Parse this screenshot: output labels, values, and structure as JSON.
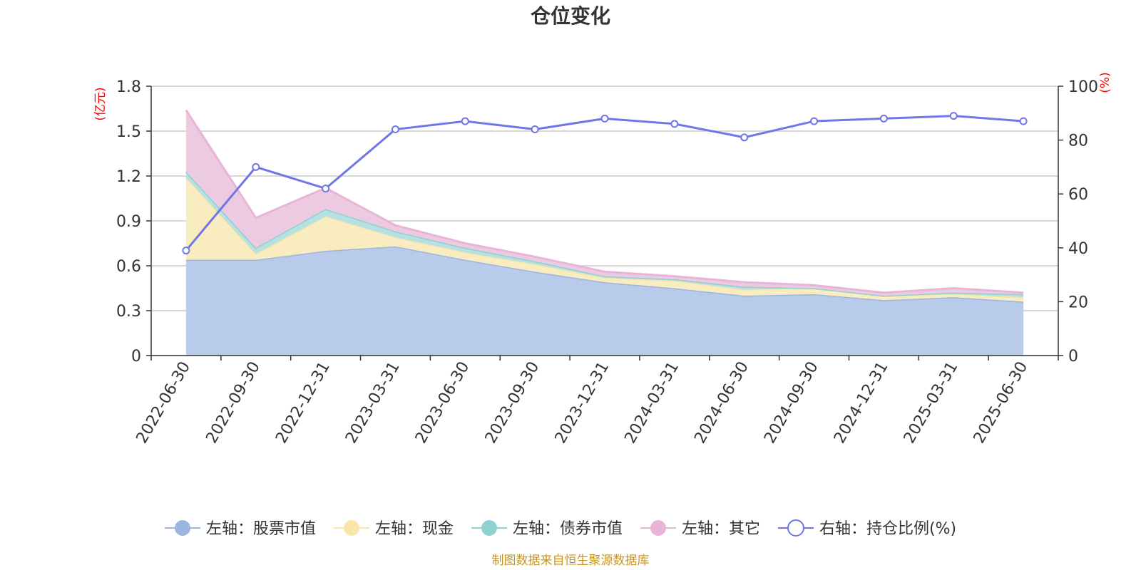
{
  "chart_data": {
    "type": "area",
    "title": "仓位变化",
    "x": [
      "2022-06-30",
      "2022-09-30",
      "2022-12-31",
      "2023-03-31",
      "2023-06-30",
      "2023-09-30",
      "2023-12-31",
      "2024-03-31",
      "2024-06-30",
      "2024-09-30",
      "2024-12-31",
      "2025-03-31",
      "2025-06-30"
    ],
    "left_axis": {
      "unit": "(亿元)",
      "ylim": [
        0,
        1.8
      ],
      "ticks": [
        "0",
        "0.3",
        "0.6",
        "0.9",
        "1.2",
        "1.5",
        "1.8"
      ]
    },
    "right_axis": {
      "unit": "(%)",
      "ylim": [
        0,
        100
      ],
      "ticks": [
        "0",
        "20",
        "40",
        "60",
        "80",
        "100"
      ]
    },
    "stacked": true,
    "grid": true,
    "legend_position": "bottom",
    "series": [
      {
        "name": "左轴：股票市值",
        "axis": "left",
        "type": "area",
        "color": "#9ab6e0",
        "fill": "#b8cbea",
        "values": [
          0.64,
          0.64,
          0.7,
          0.73,
          0.64,
          0.56,
          0.49,
          0.45,
          0.4,
          0.41,
          0.37,
          0.39,
          0.36
        ]
      },
      {
        "name": "左轴：现金",
        "axis": "left",
        "type": "area",
        "color": "#f8e6a8",
        "fill": "#f8ecc0",
        "values": [
          0.55,
          0.04,
          0.23,
          0.06,
          0.05,
          0.05,
          0.03,
          0.05,
          0.04,
          0.04,
          0.03,
          0.02,
          0.03
        ]
      },
      {
        "name": "左轴：债券市值",
        "axis": "left",
        "type": "area",
        "color": "#8fd0d0",
        "fill": "#b6e0e2",
        "values": [
          0.04,
          0.04,
          0.05,
          0.04,
          0.03,
          0.02,
          0.01,
          0.01,
          0.02,
          0.0,
          0.0,
          0.01,
          0.02
        ]
      },
      {
        "name": "左轴：其它",
        "axis": "left",
        "type": "area",
        "color": "#e8b4d8",
        "fill": "#eccbe2",
        "values": [
          0.41,
          0.2,
          0.14,
          0.04,
          0.03,
          0.03,
          0.03,
          0.02,
          0.03,
          0.02,
          0.02,
          0.03,
          0.01
        ]
      },
      {
        "name": "右轴：持仓比例(%)",
        "axis": "right",
        "type": "line",
        "color": "#7076e8",
        "values": [
          39,
          70,
          62,
          84,
          87,
          84,
          88,
          86,
          81,
          87,
          88,
          89,
          87
        ]
      }
    ]
  },
  "footer": {
    "source": "制图数据来自恒生聚源数据库"
  }
}
